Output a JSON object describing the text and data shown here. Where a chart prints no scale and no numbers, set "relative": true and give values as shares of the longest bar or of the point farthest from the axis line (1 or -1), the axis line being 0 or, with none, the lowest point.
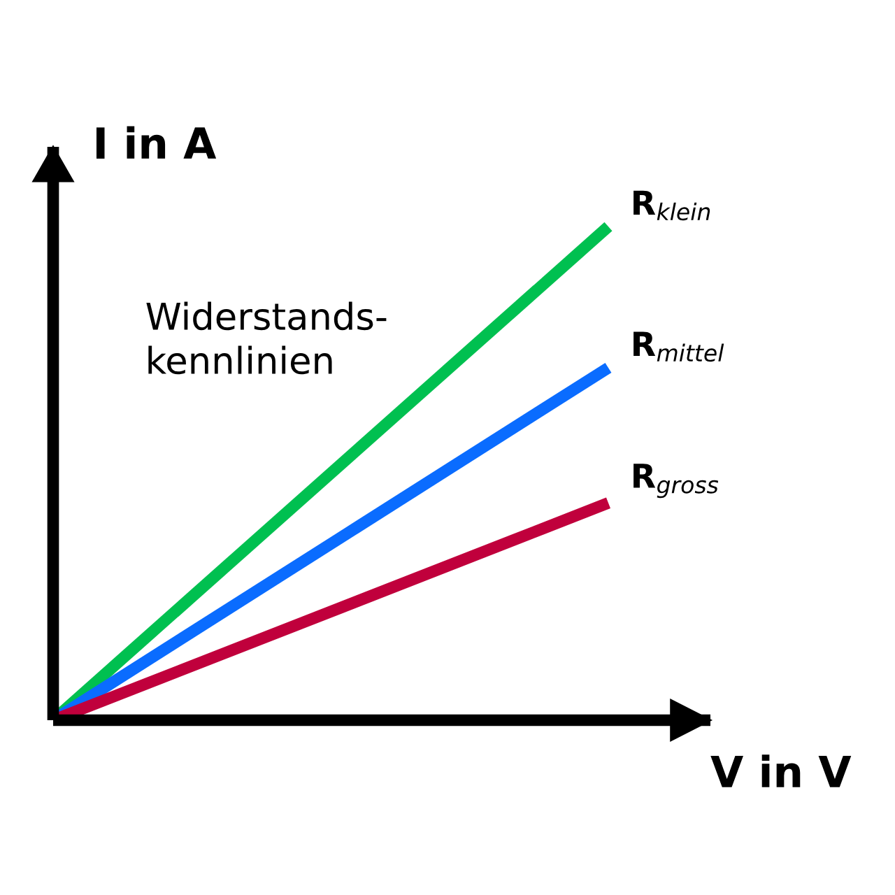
{
  "chart_data": {
    "type": "line",
    "relative": true,
    "categories": [
      null,
      null
    ],
    "xlabel": "V in V",
    "ylabel": "I in A",
    "annotations": [
      "Widerstands-\nkennlinien"
    ],
    "legend": false,
    "marker": "none",
    "line_style": "solid",
    "series": [
      {
        "name": "R$_{klein}$",
        "color": "#00c050",
        "values": [
          0,
          1
        ]
      },
      {
        "name": "R$_{mittel}$",
        "color": "#0a6cff",
        "values": [
          0,
          0.714
        ]
      },
      {
        "name": "R$_{gross}$",
        "color": "#c0003c",
        "values": [
          0,
          0.44
        ]
      }
    ]
  }
}
